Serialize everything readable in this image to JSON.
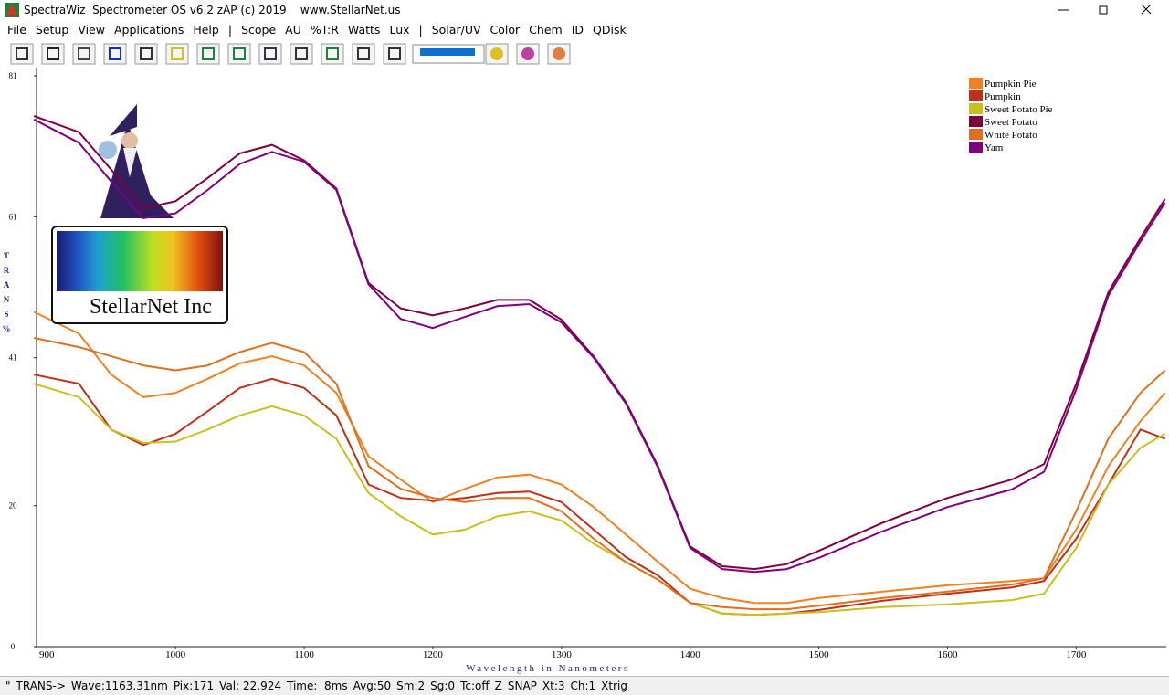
{
  "window": {
    "title": "SpectraWiz  Spectrometer OS v6.2 zAP (c) 2019    www.StellarNet.us"
  },
  "menu": [
    "File",
    "Setup",
    "View",
    "Applications",
    "Help",
    "|",
    "Scope",
    "AU",
    "%T:R",
    "Watts",
    "Lux",
    "|",
    "Solar/UV",
    "Color",
    "Chem",
    "ID",
    "QDisk"
  ],
  "logo": {
    "text": "StellarNet Inc"
  },
  "status_bar": [
    "\"",
    "TRANS->",
    "Wave:1163.31nm",
    "Pix:171",
    "Val: 22.924",
    "Time:  8ms",
    "Avg:50",
    "Sm:2",
    "Sg:0",
    "Tc:off",
    "Z",
    "SNAP",
    "Xt:3",
    "Ch:1",
    "Xtrig"
  ],
  "chart_data": {
    "type": "line",
    "x_label": "Wavelength in Nanometers",
    "y_label": "TRANS%",
    "x": [
      890,
      925,
      950,
      975,
      1000,
      1025,
      1050,
      1075,
      1100,
      1125,
      1150,
      1175,
      1200,
      1225,
      1250,
      1275,
      1300,
      1325,
      1350,
      1375,
      1400,
      1425,
      1450,
      1475,
      1500,
      1550,
      1600,
      1650,
      1675,
      1700,
      1725,
      1750,
      1769
    ],
    "xlim": [
      892,
      1770
    ],
    "xticks": [
      900,
      1000,
      1100,
      1200,
      1300,
      1400,
      1500,
      1600,
      1700
    ],
    "ylim": [
      0,
      81
    ],
    "yticks": [
      0,
      20,
      41,
      61,
      81
    ],
    "legend": "upper right",
    "series": [
      {
        "name": "Pumpkin Pie",
        "color": "#f08020",
        "values": [
          47.5,
          44.4,
          38.6,
          35.4,
          36,
          38,
          40.2,
          41.2,
          39.9,
          36,
          27,
          23.7,
          20.5,
          22.4,
          24,
          24.4,
          23,
          19.8,
          15.9,
          12,
          8.2,
          6.9,
          6.2,
          6.2,
          6.9,
          7.8,
          8.7,
          9.3,
          9.7,
          16.6,
          25.6,
          32,
          36
        ]
      },
      {
        "name": "Pumpkin",
        "color": "#c03018",
        "values": [
          38.6,
          37.3,
          30.8,
          28.6,
          30.2,
          33.4,
          36.7,
          38,
          36.7,
          32.8,
          23,
          21.1,
          20.7,
          21.1,
          21.8,
          22,
          20.5,
          16.6,
          12.7,
          10.1,
          6.2,
          4.7,
          4.5,
          4.7,
          5.2,
          6.5,
          7.5,
          8.4,
          9.3,
          15.3,
          23,
          30.8,
          29.5
        ]
      },
      {
        "name": "Sweet Potato Pie",
        "color": "#c8c020",
        "values": [
          37.3,
          35.4,
          30.8,
          28.9,
          29.1,
          30.8,
          32.8,
          34.1,
          32.8,
          29.5,
          21.8,
          18.5,
          15.9,
          16.6,
          18.5,
          19.2,
          17.9,
          14.6,
          12,
          9.5,
          6.2,
          4.7,
          4.5,
          4.7,
          4.9,
          5.6,
          6,
          6.6,
          7.5,
          14,
          23,
          28.2,
          30.2
        ]
      },
      {
        "name": "Sweet Potato",
        "color": "#800040",
        "values": [
          75.3,
          73,
          67.7,
          62.2,
          63.2,
          66.5,
          70,
          71.2,
          69,
          65,
          51.6,
          48,
          47,
          48,
          49.2,
          49.2,
          46.4,
          41.2,
          34.7,
          25.6,
          14.2,
          11.4,
          11,
          11.7,
          13.6,
          17.6,
          21.1,
          23.7,
          25.9,
          37.3,
          50.3,
          58,
          63.5
        ]
      },
      {
        "name": "White Potato",
        "color": "#e07020",
        "values": [
          43.8,
          42.5,
          41.2,
          39.9,
          39.2,
          39.9,
          41.8,
          43.1,
          41.8,
          37.3,
          25.6,
          22.4,
          21.1,
          20.5,
          21.1,
          21.1,
          19.2,
          15.3,
          12,
          9.5,
          6.2,
          5.6,
          5.3,
          5.3,
          5.8,
          6.9,
          7.8,
          8.8,
          9.7,
          19.2,
          29.5,
          36,
          39.2
        ]
      },
      {
        "name": "Yam",
        "color": "#800080",
        "values": [
          74.8,
          71.5,
          66,
          60.8,
          61.5,
          64.8,
          68.5,
          70.2,
          68.8,
          64.8,
          51.4,
          46.5,
          45.2,
          46.8,
          48.3,
          48.6,
          46,
          41,
          34.5,
          25.4,
          14,
          11,
          10.6,
          11,
          12.6,
          16.4,
          19.8,
          22.3,
          24.8,
          36.5,
          49.8,
          57.5,
          63
        ]
      }
    ]
  }
}
